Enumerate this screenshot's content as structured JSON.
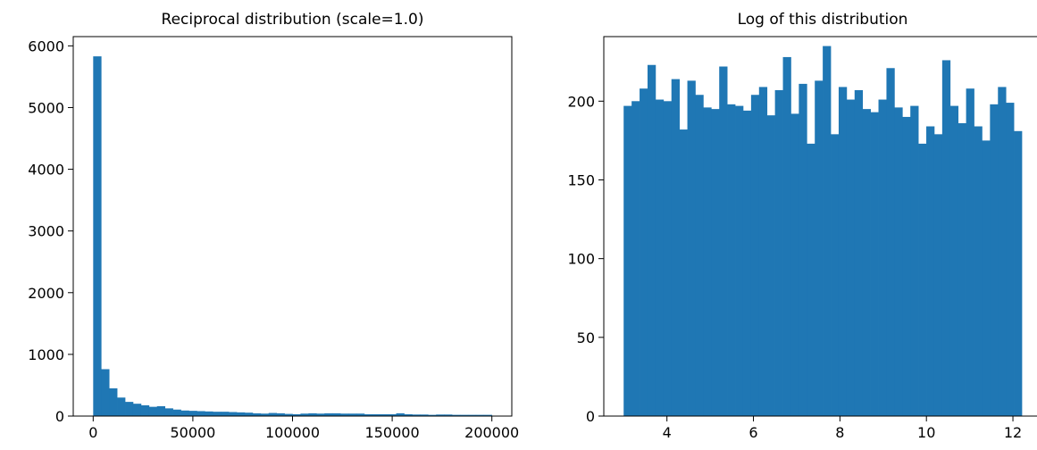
{
  "chart_data": [
    {
      "type": "bar",
      "title": "Reciprocal distribution (scale=1.0)",
      "xlabel": "",
      "ylabel": "",
      "xlim": [
        -10000,
        210000
      ],
      "ylim": [
        0,
        6150
      ],
      "x_ticks": [
        0,
        50000,
        100000,
        150000,
        200000
      ],
      "x_tick_labels": [
        "0",
        "50000",
        "100000",
        "150000",
        "200000"
      ],
      "y_ticks": [
        0,
        1000,
        2000,
        3000,
        4000,
        5000,
        6000
      ],
      "y_tick_labels": [
        "0",
        "1000",
        "2000",
        "3000",
        "4000",
        "5000",
        "6000"
      ],
      "bins": {
        "start": 0,
        "end": 200000,
        "count": 50
      },
      "values": [
        5830,
        760,
        450,
        300,
        230,
        200,
        175,
        150,
        160,
        125,
        105,
        90,
        85,
        80,
        75,
        70,
        70,
        65,
        60,
        55,
        45,
        40,
        50,
        45,
        35,
        30,
        40,
        45,
        40,
        45,
        45,
        40,
        40,
        40,
        30,
        30,
        30,
        30,
        45,
        30,
        25,
        25,
        20,
        25,
        25,
        20,
        20,
        20,
        20,
        20
      ],
      "color": "#1f77b4",
      "grid": false,
      "legend": "none"
    },
    {
      "type": "bar",
      "title": "Log of this distribution",
      "xlabel": "",
      "ylabel": "",
      "xlim": [
        2.54,
        12.66
      ],
      "ylim": [
        0,
        241
      ],
      "x_ticks": [
        4,
        6,
        8,
        10,
        12
      ],
      "x_tick_labels": [
        "4",
        "6",
        "8",
        "10",
        "12"
      ],
      "y_ticks": [
        0,
        50,
        100,
        150,
        200
      ],
      "y_tick_labels": [
        "0",
        "50",
        "100",
        "150",
        "200"
      ],
      "bins": {
        "start": 2.999,
        "end": 12.206,
        "count": 50
      },
      "values": [
        197,
        200,
        208,
        223,
        201,
        200,
        214,
        182,
        213,
        204,
        196,
        195,
        222,
        198,
        197,
        194,
        204,
        209,
        191,
        207,
        228,
        192,
        211,
        173,
        213,
        235,
        179,
        209,
        201,
        207,
        195,
        193,
        201,
        221,
        196,
        190,
        197,
        173,
        184,
        179,
        226,
        197,
        186,
        208,
        184,
        175,
        198,
        209,
        199,
        181
      ],
      "color": "#1f77b4",
      "grid": false,
      "legend": "none"
    }
  ]
}
